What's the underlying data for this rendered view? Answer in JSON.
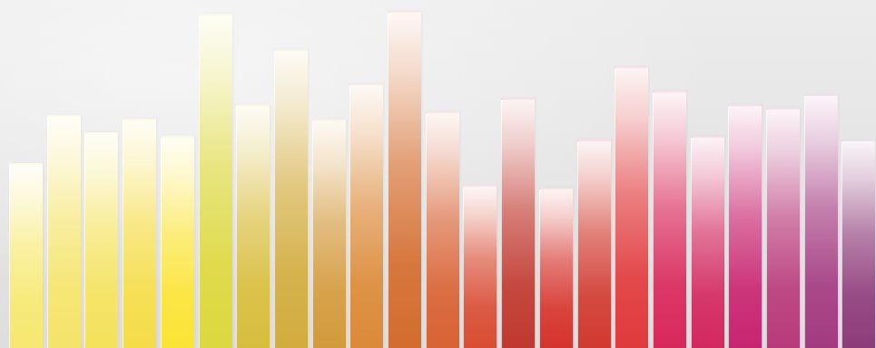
{
  "scene": {
    "description_free": true,
    "background": "#e6e6e6"
  },
  "bars": [
    {
      "level": 0.53,
      "color": "#f6e870"
    },
    {
      "level": 0.67,
      "color": "#f5e46a"
    },
    {
      "level": 0.62,
      "color": "#f4e25c"
    },
    {
      "level": 0.66,
      "color": "#f5dd48"
    },
    {
      "level": 0.61,
      "color": "#fbe435"
    },
    {
      "level": 0.96,
      "color": "#dcd83e"
    },
    {
      "level": 0.7,
      "color": "#d8bd3c"
    },
    {
      "level": 0.86,
      "color": "#d2ac3e"
    },
    {
      "level": 0.66,
      "color": "#d39a3c"
    },
    {
      "level": 0.76,
      "color": "#db8a38"
    },
    {
      "level": 0.97,
      "color": "#d36c2e"
    },
    {
      "level": 0.68,
      "color": "#d86234"
    },
    {
      "level": 0.47,
      "color": "#d84d34"
    },
    {
      "level": 0.72,
      "color": "#c0392f"
    },
    {
      "level": 0.46,
      "color": "#d5342c"
    },
    {
      "level": 0.6,
      "color": "#d13a30"
    },
    {
      "level": 0.81,
      "color": "#e03a3c"
    },
    {
      "level": 0.74,
      "color": "#d8285a"
    },
    {
      "level": 0.61,
      "color": "#d22860"
    },
    {
      "level": 0.7,
      "color": "#c82570"
    },
    {
      "level": 0.69,
      "color": "#b83a7a"
    },
    {
      "level": 0.73,
      "color": "#a33a80"
    },
    {
      "level": 0.6,
      "color": "#8e3c7a"
    }
  ]
}
